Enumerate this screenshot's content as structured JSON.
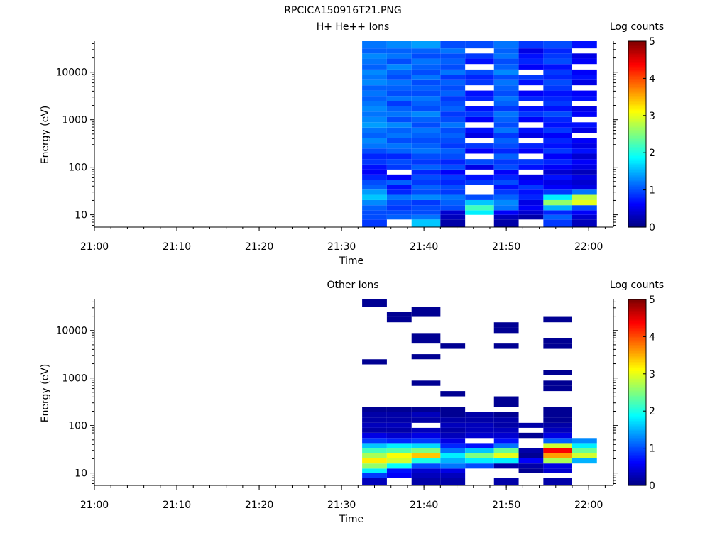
{
  "figure_title": "RPCICA150916T21.PNG",
  "colors": {
    "colormap": [
      "#00007f",
      "#0000ff",
      "#007fff",
      "#00ffff",
      "#7fff7f",
      "#ffff00",
      "#ff7f00",
      "#ff0000",
      "#7f0000"
    ]
  },
  "chart_data": [
    {
      "type": "heatmap",
      "title": "H+ He++ Ions",
      "xlabel": "Time",
      "ylabel": "Energy (eV)",
      "x_ticks": [
        "21:00",
        "21:10",
        "21:20",
        "21:30",
        "21:40",
        "21:50",
        "22:00"
      ],
      "y_ticks": [
        "10",
        "100",
        "1000",
        "10000"
      ],
      "y_scale": "log",
      "xlim": [
        "21:00",
        "22:03"
      ],
      "ylim": [
        5.5,
        45000
      ],
      "colorbar": {
        "label": "Log counts",
        "ticks": [
          "0",
          "1",
          "2",
          "3",
          "4",
          "5"
        ],
        "range": [
          0,
          5
        ]
      },
      "time_bins": [
        {
          "start": "21:32.5",
          "end": "21:35.5"
        },
        {
          "start": "21:35.5",
          "end": "21:38.5"
        },
        {
          "start": "21:38.5",
          "end": "21:42"
        },
        {
          "start": "21:42",
          "end": "21:45"
        },
        {
          "start": "21:45",
          "end": "21:48.5"
        },
        {
          "start": "21:48.5",
          "end": "21:51.5"
        },
        {
          "start": "21:51.5",
          "end": "21:54.5"
        },
        {
          "start": "21:54.5",
          "end": "21:58"
        },
        {
          "start": "21:58",
          "end": "22:01"
        }
      ],
      "energy_bins_eV": [
        7,
        9,
        11,
        14,
        18,
        23,
        30,
        38,
        48,
        62,
        80,
        100,
        130,
        170,
        220,
        280,
        360,
        470,
        600,
        780,
        1000,
        1300,
        1700,
        2200,
        2800,
        3600,
        4700,
        6000,
        7800,
        10000,
        13000,
        17000,
        22000,
        28000,
        36000
      ],
      "log_counts": [
        [
          0.9,
          1.0,
          1.0,
          1.1,
          1.3,
          1.6,
          1.4,
          1.1,
          1.0,
          0.8,
          0.6,
          0.7,
          0.9,
          0.8,
          1.0,
          1.2,
          1.3,
          1.1,
          1.2,
          1.4,
          1.3,
          1.2,
          1.3,
          1.2,
          1.1,
          1.2,
          1.1,
          1.3,
          1.2,
          1.3,
          1.1,
          1.2,
          1.3,
          1.1,
          1.2
        ],
        [
          null,
          1.1,
          1.0,
          0.9,
          1.0,
          1.2,
          0.8,
          0.7,
          1.1,
          0.6,
          null,
          0.9,
          1.0,
          0.8,
          1.1,
          1.2,
          1.0,
          1.2,
          1.1,
          1.3,
          1.0,
          1.2,
          1.1,
          0.9,
          1.2,
          1.0,
          1.1,
          1.2,
          1.0,
          1.1,
          1.3,
          1.0,
          1.2,
          1.1,
          1.3
        ],
        [
          1.6,
          1.2,
          1.0,
          1.0,
          0.9,
          1.3,
          1.0,
          1.1,
          0.9,
          1.0,
          0.8,
          1.1,
          0.9,
          1.0,
          1.2,
          1.1,
          1.0,
          1.1,
          1.2,
          1.0,
          1.1,
          1.3,
          1.0,
          1.1,
          1.2,
          1.0,
          1.1,
          1.0,
          1.2,
          1.0,
          1.1,
          1.2,
          1.0,
          1.1,
          1.4
        ],
        [
          0.2,
          0.3,
          0.4,
          1.0,
          1.1,
          1.2,
          0.9,
          1.0,
          0.8,
          0.9,
          0.6,
          1.0,
          0.8,
          1.0,
          1.1,
          0.9,
          1.0,
          1.1,
          1.0,
          1.2,
          1.0,
          0.9,
          1.1,
          1.0,
          0.9,
          1.1,
          1.0,
          1.1,
          0.9,
          1.2,
          1.0,
          1.1,
          1.0,
          1.2,
          1.0
        ],
        [
          null,
          null,
          1.8,
          2.2,
          1.6,
          1.0,
          null,
          null,
          0.9,
          0.7,
          null,
          0.5,
          1.0,
          null,
          0.6,
          0.9,
          null,
          0.5,
          0.7,
          null,
          0.6,
          0.9,
          0.7,
          null,
          0.8,
          0.7,
          null,
          0.9,
          0.8,
          1.0,
          null,
          0.7,
          0.9,
          null,
          1.0
        ],
        [
          0.2,
          0.3,
          0.6,
          1.2,
          1.3,
          1.1,
          0.9,
          0.7,
          1.0,
          0.8,
          0.6,
          1.0,
          0.9,
          1.1,
          0.8,
          1.0,
          1.1,
          0.9,
          1.2,
          1.0,
          1.1,
          1.2,
          0.9,
          1.1,
          1.2,
          1.0,
          1.1,
          1.2,
          1.0,
          1.3,
          1.1,
          1.0,
          1.2,
          1.1,
          1.2
        ],
        [
          null,
          0.2,
          0.4,
          0.6,
          0.5,
          0.8,
          0.7,
          0.9,
          0.6,
          0.5,
          null,
          0.7,
          0.9,
          null,
          0.6,
          0.8,
          null,
          0.5,
          0.7,
          null,
          0.6,
          0.9,
          0.7,
          null,
          0.8,
          0.6,
          null,
          0.7,
          0.9,
          null,
          0.6,
          0.8,
          0.7,
          0.5,
          0.9
        ],
        [
          0.9,
          1.1,
          0.8,
          1.5,
          2.6,
          1.8,
          0.9,
          0.6,
          0.5,
          0.7,
          0.4,
          0.6,
          0.8,
          0.6,
          0.9,
          0.7,
          0.8,
          0.6,
          0.9,
          0.7,
          0.8,
          1.0,
          0.7,
          0.9,
          0.8,
          0.7,
          0.9,
          1.0,
          0.8,
          0.9,
          0.7,
          1.0,
          0.9,
          0.8,
          1.0
        ],
        [
          0.3,
          0.4,
          0.6,
          1.0,
          3.0,
          2.8,
          1.2,
          0.5,
          0.4,
          0.5,
          0.3,
          0.5,
          0.6,
          0.4,
          0.7,
          0.5,
          0.6,
          null,
          0.5,
          0.7,
          null,
          0.6,
          0.5,
          null,
          0.7,
          0.6,
          null,
          0.5,
          0.7,
          0.6,
          null,
          0.6,
          0.5,
          null,
          0.7
        ]
      ]
    },
    {
      "type": "heatmap",
      "title": "Other Ions",
      "xlabel": "Time",
      "ylabel": "Energy (eV)",
      "x_ticks": [
        "21:00",
        "21:10",
        "21:20",
        "21:30",
        "21:40",
        "21:50",
        "22:00"
      ],
      "y_ticks": [
        "10",
        "100",
        "1000",
        "10000"
      ],
      "y_scale": "log",
      "xlim": [
        "21:00",
        "22:03"
      ],
      "ylim": [
        5.5,
        45000
      ],
      "colorbar": {
        "label": "Log counts",
        "ticks": [
          "0",
          "1",
          "2",
          "3",
          "4",
          "5"
        ],
        "range": [
          0,
          5
        ]
      },
      "time_bins": [
        {
          "start": "21:32.5",
          "end": "21:35.5"
        },
        {
          "start": "21:35.5",
          "end": "21:38.5"
        },
        {
          "start": "21:38.5",
          "end": "21:42"
        },
        {
          "start": "21:42",
          "end": "21:45"
        },
        {
          "start": "21:45",
          "end": "21:48.5"
        },
        {
          "start": "21:48.5",
          "end": "21:51.5"
        },
        {
          "start": "21:51.5",
          "end": "21:54.5"
        },
        {
          "start": "21:54.5",
          "end": "21:58"
        },
        {
          "start": "21:58",
          "end": "22:01"
        }
      ],
      "energy_bins_eV": [
        7,
        9,
        11,
        14,
        18,
        23,
        30,
        38,
        48,
        62,
        80,
        100,
        130,
        170,
        220,
        280,
        360,
        470,
        600,
        780,
        1000,
        1300,
        1700,
        2200,
        2800,
        3600,
        4700,
        6000,
        7800,
        10000,
        13000,
        17000,
        22000,
        28000,
        36000
      ],
      "log_counts": [
        [
          0.3,
          0.9,
          1.8,
          2.6,
          3.2,
          2.7,
          2.2,
          1.6,
          0.9,
          0.5,
          0.2,
          0.3,
          0.2,
          0.2,
          0.1,
          null,
          null,
          null,
          null,
          null,
          null,
          null,
          null,
          0.1,
          null,
          null,
          null,
          null,
          null,
          null,
          null,
          null,
          null,
          null,
          0.1
        ],
        [
          null,
          0.6,
          0.7,
          1.9,
          2.9,
          3.1,
          2.3,
          1.8,
          0.8,
          0.4,
          0.2,
          0.3,
          0.2,
          0.2,
          0.1,
          null,
          null,
          null,
          null,
          null,
          null,
          null,
          null,
          null,
          null,
          null,
          null,
          null,
          null,
          null,
          null,
          0.1,
          0.1,
          null,
          null
        ],
        [
          0.2,
          0.3,
          0.4,
          1.0,
          2.0,
          3.4,
          2.5,
          1.7,
          0.9,
          0.5,
          0.3,
          null,
          0.2,
          0.3,
          0.1,
          null,
          null,
          null,
          null,
          0.1,
          null,
          null,
          null,
          null,
          0.1,
          null,
          null,
          0.1,
          0.1,
          null,
          null,
          null,
          0.1,
          0.1,
          null
        ],
        [
          0.2,
          0.3,
          0.5,
          1.2,
          1.5,
          1.8,
          1.2,
          0.8,
          0.5,
          0.3,
          0.2,
          0.3,
          0.2,
          0.1,
          0.1,
          null,
          null,
          0.1,
          null,
          null,
          null,
          null,
          null,
          null,
          null,
          null,
          0.1,
          null,
          null,
          null,
          null,
          null,
          null,
          null,
          null
        ],
        [
          null,
          null,
          null,
          1.0,
          1.8,
          2.5,
          1.6,
          0.7,
          null,
          0.4,
          0.3,
          0.3,
          0.2,
          0.2,
          null,
          null,
          null,
          null,
          null,
          null,
          null,
          null,
          null,
          null,
          null,
          null,
          null,
          null,
          null,
          null,
          null,
          null,
          null,
          null,
          null
        ],
        [
          0.2,
          null,
          null,
          0.2,
          1.8,
          3.0,
          2.4,
          1.2,
          0.7,
          0.4,
          0.3,
          0.2,
          0.2,
          0.1,
          null,
          0.1,
          0.1,
          null,
          null,
          null,
          null,
          null,
          null,
          null,
          null,
          null,
          0.1,
          null,
          null,
          0.1,
          0.1,
          null,
          null,
          null,
          null
        ],
        [
          null,
          null,
          0.1,
          0.2,
          0.6,
          0.1,
          0.2,
          null,
          null,
          0.1,
          null,
          0.2,
          null,
          null,
          null,
          null,
          null,
          null,
          null,
          null,
          null,
          null,
          null,
          null,
          null,
          null,
          null,
          null,
          null,
          null,
          null,
          null,
          null,
          null,
          null
        ],
        [
          0.2,
          null,
          0.4,
          0.5,
          2.7,
          3.6,
          4.4,
          2.9,
          1.1,
          0.5,
          0.3,
          0.2,
          0.1,
          0.1,
          0.1,
          null,
          null,
          null,
          0.1,
          0.1,
          null,
          0.1,
          null,
          null,
          null,
          null,
          0.1,
          0.1,
          null,
          null,
          null,
          0.1,
          null,
          null,
          null
        ],
        [
          null,
          null,
          null,
          null,
          1.5,
          2.9,
          2.4,
          1.8,
          1.3,
          null,
          null,
          null,
          null,
          null,
          null,
          null,
          null,
          null,
          null,
          null,
          null,
          null,
          null,
          null,
          null,
          null,
          null,
          null,
          null,
          null,
          null,
          null,
          null,
          null,
          null
        ]
      ]
    }
  ]
}
